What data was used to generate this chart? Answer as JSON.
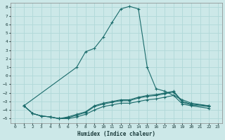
{
  "xlabel": "Humidex (Indice chaleur)",
  "background_color": "#cce8e8",
  "grid_color": "#b0d8d8",
  "line_color": "#1a6b6b",
  "xlim": [
    -0.5,
    23.5
  ],
  "ylim": [
    -5.5,
    8.5
  ],
  "xticks": [
    0,
    1,
    2,
    3,
    4,
    5,
    6,
    7,
    8,
    9,
    10,
    11,
    12,
    13,
    14,
    15,
    16,
    17,
    18,
    19,
    20,
    21,
    22,
    23
  ],
  "yticks": [
    -5,
    -4,
    -3,
    -2,
    -1,
    0,
    1,
    2,
    3,
    4,
    5,
    6,
    7,
    8
  ],
  "series": [
    [
      null,
      -3.5,
      null,
      null,
      null,
      null,
      null,
      1.0,
      2.8,
      3.2,
      4.5,
      6.2,
      7.8,
      8.1,
      7.8,
      1.0,
      -1.5,
      -1.8,
      null,
      -2.8,
      -3.2,
      null,
      -3.5,
      null
    ],
    [
      null,
      -3.5,
      -4.4,
      -4.7,
      -4.8,
      -5.0,
      -4.8,
      -4.5,
      -4.2,
      -3.5,
      -3.2,
      -3.0,
      -2.8,
      -2.8,
      -2.5,
      -2.3,
      -2.2,
      -2.0,
      -1.8,
      -3.0,
      -3.3,
      null,
      -3.5,
      null
    ],
    [
      null,
      -3.5,
      -4.4,
      -4.7,
      -4.8,
      -5.0,
      -4.9,
      -4.6,
      -4.3,
      -3.6,
      -3.3,
      -3.1,
      -2.9,
      -2.9,
      -2.6,
      -2.4,
      -2.3,
      -2.1,
      -1.9,
      -3.1,
      -3.4,
      null,
      -3.6,
      null
    ],
    [
      null,
      -3.5,
      -4.4,
      -4.7,
      -4.8,
      -5.0,
      -5.0,
      -4.8,
      -4.5,
      -4.0,
      -3.6,
      -3.4,
      -3.2,
      -3.2,
      -3.0,
      -2.8,
      -2.7,
      -2.5,
      -2.3,
      -3.3,
      -3.5,
      null,
      -3.8,
      null
    ]
  ]
}
